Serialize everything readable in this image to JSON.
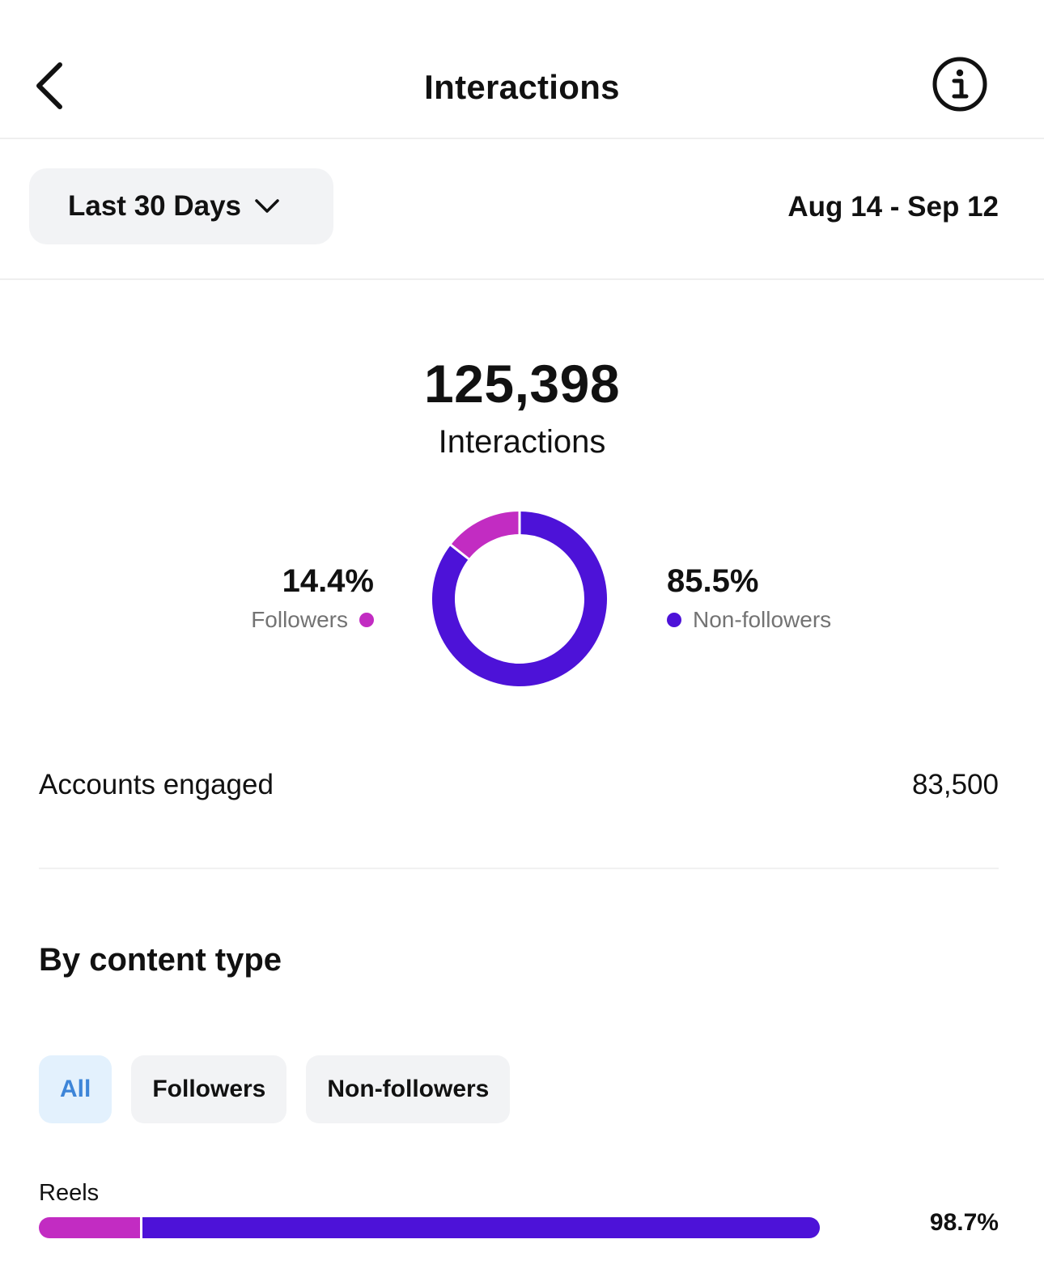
{
  "header": {
    "title": "Interactions",
    "back_icon": "chevron-left-icon",
    "info_icon": "info-icon"
  },
  "filter": {
    "range_label": "Last 30 Days",
    "date_range": "Aug 14 - Sep 12"
  },
  "summary": {
    "total_value": "125,398",
    "total_label": "Interactions"
  },
  "chart_data": {
    "type": "pie",
    "style": "donut",
    "slices": [
      {
        "name": "Followers",
        "label": "14.4%",
        "value": 14.4,
        "color": "#c22cc2"
      },
      {
        "name": "Non-followers",
        "label": "85.5%",
        "value": 85.5,
        "color": "#4d12d8"
      }
    ]
  },
  "legend": {
    "followers": {
      "pct": "14.4%",
      "name": "Followers",
      "color": "#c22cc2"
    },
    "non_followers": {
      "pct": "85.5%",
      "name": "Non-followers",
      "color": "#4d12d8"
    }
  },
  "accounts_engaged": {
    "label": "Accounts engaged",
    "value": "83,500"
  },
  "content_type": {
    "title": "By content type",
    "chips": [
      {
        "label": "All",
        "active": true
      },
      {
        "label": "Followers",
        "active": false
      },
      {
        "label": "Non-followers",
        "active": false
      }
    ],
    "rows": [
      {
        "label": "Reels",
        "value_label": "98.7%",
        "total": 98.7,
        "followers_share": 13,
        "non_followers_share": 87
      }
    ]
  },
  "colors": {
    "followers": "#c22cc2",
    "non_followers": "#4d12d8",
    "chip_active_text": "#3d85d8",
    "chip_active_bg": "#e3f1fd"
  }
}
